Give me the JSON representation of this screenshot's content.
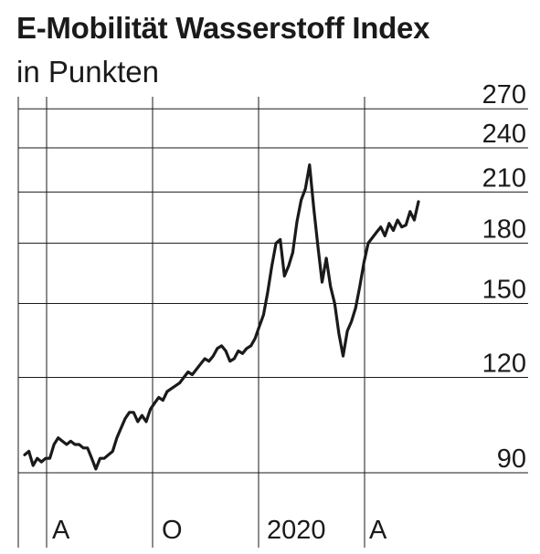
{
  "chart_data": {
    "type": "line",
    "title": "E-Mobilität Wasserstoff Index",
    "subtitle": "in Punkten",
    "xlabel": "",
    "ylabel": "",
    "x_ticks": [
      "A",
      "O",
      "2020",
      "A"
    ],
    "y_ticks": [
      90,
      120,
      150,
      180,
      210,
      240,
      270
    ],
    "ylim": [
      84,
      280
    ],
    "scale": "log",
    "grid": true,
    "line_color": "#1a1a1a",
    "series": [
      {
        "values": [
          95,
          96,
          92,
          94,
          93,
          94,
          94,
          98,
          100,
          99,
          98,
          99,
          98,
          98,
          97,
          97,
          94,
          91,
          94,
          94,
          95,
          96,
          100,
          103,
          106,
          108,
          108,
          105,
          107,
          105,
          109,
          111,
          113,
          112,
          115,
          116,
          117,
          118,
          120,
          122,
          121,
          123,
          125,
          127,
          126,
          128,
          131,
          132,
          130,
          126,
          127,
          130,
          129,
          131,
          132,
          135,
          140,
          145,
          155,
          168,
          180,
          182,
          163,
          168,
          175,
          192,
          205,
          212,
          228,
          200,
          178,
          160,
          172,
          158,
          150,
          137,
          128,
          138,
          142,
          148,
          158,
          170,
          180,
          183,
          186,
          189,
          184,
          191,
          187,
          193,
          189,
          190,
          198,
          193,
          204
        ]
      }
    ]
  }
}
